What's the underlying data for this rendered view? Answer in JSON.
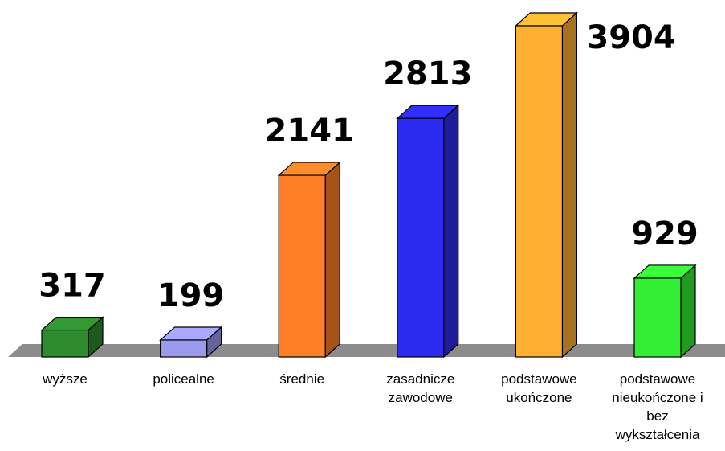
{
  "chart_data": {
    "type": "bar3d",
    "categories": [
      "wyższe",
      "policealne",
      "średnie",
      "zasadnicze zawodowe",
      "podstawowe ukończone",
      "podstawowe nieukończone i bez wykształcenia"
    ],
    "values": [
      317,
      199,
      2141,
      2813,
      3904,
      929
    ],
    "colors": [
      "#2e8b2e",
      "#9a9aee",
      "#ff7f27",
      "#2b2bf0",
      "#ffb031",
      "#33ee33"
    ]
  }
}
